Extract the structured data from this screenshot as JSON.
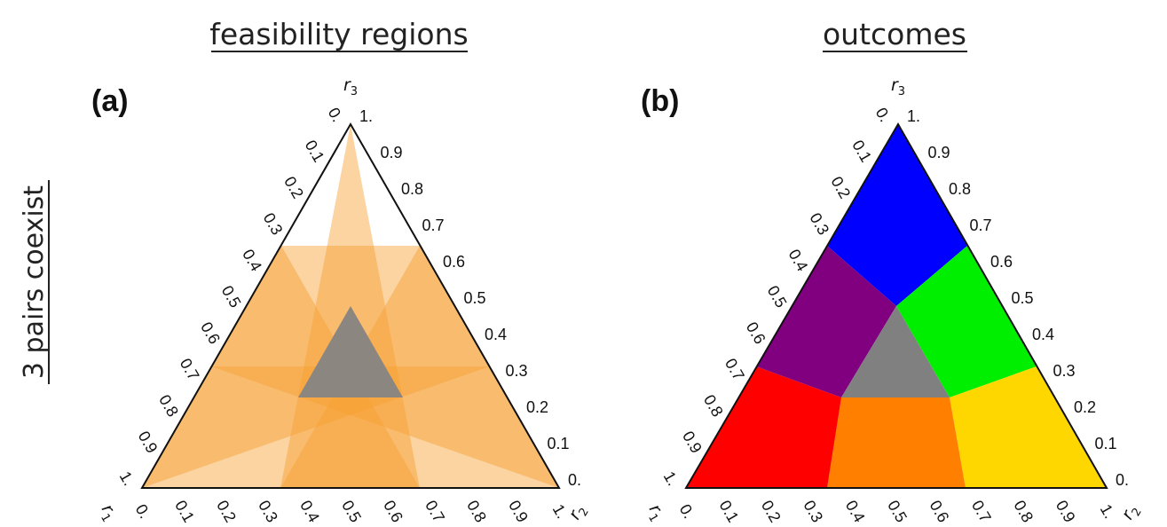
{
  "headings": {
    "left": "feasibility regions",
    "right": "outcomes",
    "side": "3 pairs coexist"
  },
  "panels": [
    {
      "label": "(a)",
      "axis_names": {
        "r1": "r",
        "r1_sub": "1",
        "r2": "r",
        "r2_sub": "2",
        "r3": "r",
        "r3_sub": "3"
      },
      "ticks_bottom": [
        "0.",
        "0.1",
        "0.2",
        "0.3",
        "0.4",
        "0.5",
        "0.6",
        "0.7",
        "0.8",
        "0.9",
        "1."
      ],
      "ticks_right": [
        "0.",
        "0.1",
        "0.2",
        "0.3",
        "0.4",
        "0.5",
        "0.6",
        "0.7",
        "0.8",
        "0.9",
        "1."
      ],
      "ticks_left": [
        "0.",
        "0.1",
        "0.2",
        "0.3",
        "0.4",
        "0.5",
        "0.6",
        "0.7",
        "0.8",
        "0.9",
        "1."
      ]
    },
    {
      "label": "(b)",
      "axis_names": {
        "r1": "r",
        "r1_sub": "1",
        "r2": "r",
        "r2_sub": "2",
        "r3": "r",
        "r3_sub": "3"
      },
      "ticks_bottom": [
        "0.",
        "0.1",
        "0.2",
        "0.3",
        "0.4",
        "0.5",
        "0.6",
        "0.7",
        "0.8",
        "0.9",
        "1."
      ],
      "ticks_right": [
        "0.",
        "0.1",
        "0.2",
        "0.3",
        "0.4",
        "0.5",
        "0.6",
        "0.7",
        "0.8",
        "0.9",
        "1."
      ],
      "ticks_left": [
        "0.",
        "0.1",
        "0.2",
        "0.3",
        "0.4",
        "0.5",
        "0.6",
        "0.7",
        "0.8",
        "0.9",
        "1."
      ]
    }
  ],
  "colors": {
    "band_fill": "#f7a030",
    "center_gray": "#8b8680",
    "outcome_blue": "#0000ff",
    "outcome_green": "#00ee00",
    "outcome_yellow": "#ffd700",
    "outcome_orange": "#ff7f00",
    "outcome_red": "#ff0000",
    "outcome_purple": "#800080",
    "outcome_gray": "#808080"
  }
}
